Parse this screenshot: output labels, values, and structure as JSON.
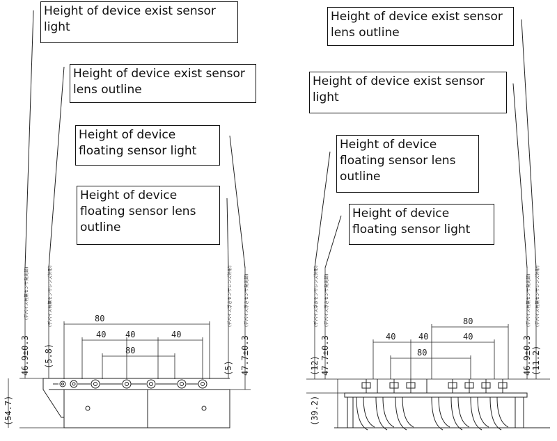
{
  "callouts": {
    "left_exist_light": "Height of device exist sensor light",
    "left_exist_lens": "Height of device exist sensor lens outline",
    "left_float_light": "Height of device floating sensor light",
    "left_float_lens": "Height of device floating sensor lens outline",
    "right_exist_lens": "Height of device exist sensor lens outline",
    "right_exist_light": "Height of device exist sensor light",
    "right_float_lens": "Height of device floating sensor lens outline",
    "right_float_light": "Height of device floating sensor light"
  },
  "dimensions": {
    "left": {
      "top_80": "80",
      "mid_40_a": "40",
      "mid_40_b": "40",
      "mid_40_c": "40",
      "inner_80": "80",
      "exist_height": "46.9±0.3",
      "exist_lens": "(5.8)",
      "float_lens": "(5)",
      "float_height": "47.7±0.3",
      "overall": "(54.7)"
    },
    "right": {
      "top_80": "80",
      "mid_40_a": "40",
      "mid_40_b": "40",
      "mid_40_c": "40",
      "inner_80": "80",
      "float_lens": "(12)",
      "float_height": "47.7±0.3",
      "overall": "(39.2)",
      "exist_height": "46.9±0.3",
      "exist_lens": "(11.2)"
    }
  },
  "vertical_notes": {
    "exist_light_jp": "(デバイス有無センサ発光部)",
    "exist_lens_jp": "(デバイス有無センサレンズ外形)",
    "float_light_jp": "(デバイス浮きセンサ発光部)",
    "float_lens_jp": "(デバイス浮きセンサレンズ外形)"
  }
}
